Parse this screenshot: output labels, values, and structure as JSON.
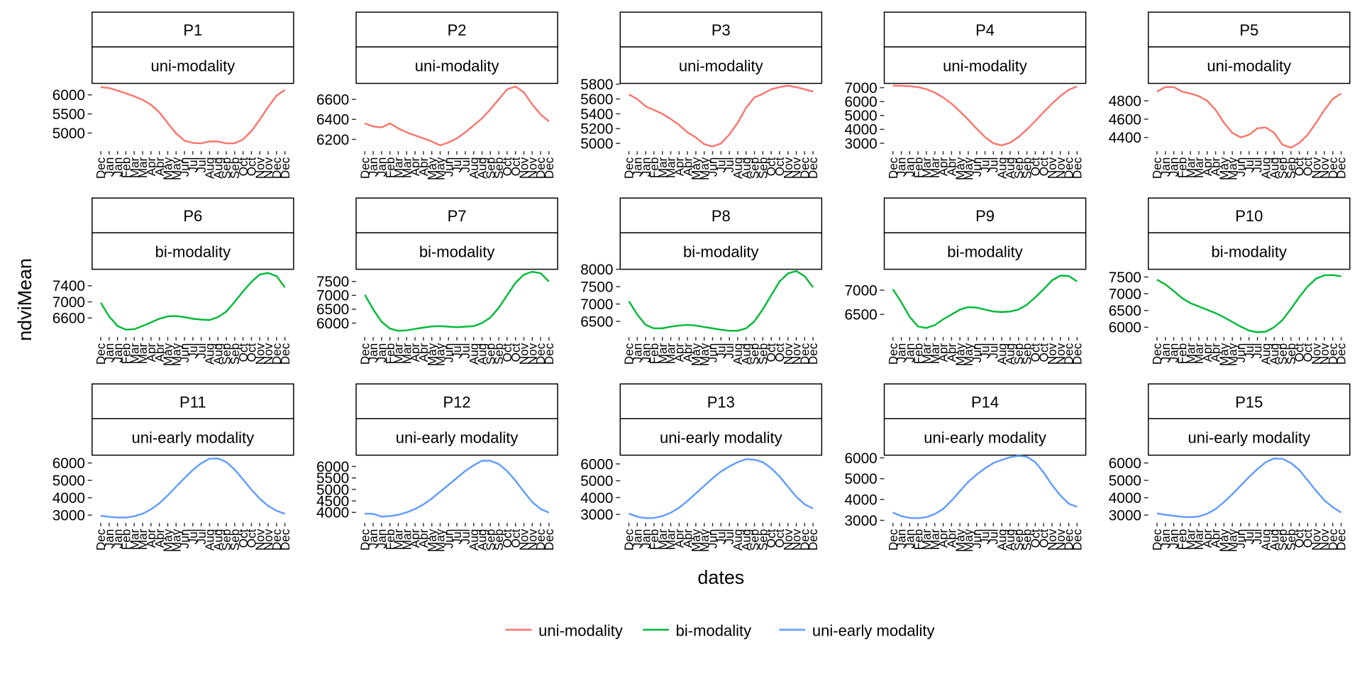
{
  "x_label": "dates",
  "y_label": "ndviMean",
  "legend": [
    {
      "name": "uni-modality",
      "color": "#F8766D"
    },
    {
      "name": "bi-modality",
      "color": "#00BA38"
    },
    {
      "name": "uni-early modality",
      "color": "#619CFF"
    }
  ],
  "chart_data": [
    {
      "type": "line",
      "title": "P1",
      "subtitle": "uni-modality",
      "color": "#F8766D",
      "categories": [
        "Dec",
        "Jan",
        "Jan",
        "Feb",
        "Mar",
        "Mar",
        "Apr",
        "Apr",
        "May",
        "May",
        "Jun",
        "Jul",
        "Jul",
        "Aug",
        "Aug",
        "Sep",
        "Sep",
        "Oct",
        "Oct",
        "Nov",
        "Nov",
        "Dec",
        "Dec"
      ],
      "values": [
        6200,
        6180,
        6110,
        6040,
        5960,
        5870,
        5740,
        5540,
        5260,
        4990,
        4800,
        4740,
        4730,
        4780,
        4780,
        4730,
        4730,
        4830,
        5050,
        5350,
        5680,
        5980,
        6130
      ],
      "ylim": [
        4570,
        6300
      ],
      "yticks": [
        5000,
        5500,
        6000
      ]
    },
    {
      "type": "line",
      "title": "P2",
      "subtitle": "uni-modality",
      "color": "#F8766D",
      "categories": [
        "Dec",
        "Jan",
        "Jan",
        "Feb",
        "Mar",
        "Mar",
        "Apr",
        "Apr",
        "May",
        "May",
        "Jun",
        "Jul",
        "Jul",
        "Aug",
        "Aug",
        "Sep",
        "Sep",
        "Oct",
        "Oct",
        "Nov",
        "Nov",
        "Dec",
        "Dec"
      ],
      "values": [
        6360,
        6330,
        6320,
        6360,
        6310,
        6270,
        6240,
        6210,
        6180,
        6140,
        6170,
        6210,
        6270,
        6340,
        6410,
        6500,
        6600,
        6700,
        6730,
        6670,
        6550,
        6450,
        6380
      ],
      "ylim": [
        6100,
        6760
      ],
      "yticks": [
        6200,
        6400,
        6600
      ]
    },
    {
      "type": "line",
      "title": "P3",
      "subtitle": "uni-modality",
      "color": "#F8766D",
      "categories": [
        "Dec",
        "Jan",
        "Jan",
        "Feb",
        "Mar",
        "Mar",
        "Apr",
        "Apr",
        "May",
        "May",
        "Jun",
        "Jul",
        "Jul",
        "Aug",
        "Aug",
        "Sep",
        "Sep",
        "Oct",
        "Oct",
        "Nov",
        "Nov",
        "Dec",
        "Dec"
      ],
      "values": [
        5660,
        5600,
        5500,
        5450,
        5400,
        5330,
        5250,
        5150,
        5080,
        4990,
        4960,
        5000,
        5120,
        5280,
        5480,
        5620,
        5670,
        5730,
        5760,
        5780,
        5760,
        5730,
        5700
      ],
      "ylim": [
        4920,
        5810
      ],
      "yticks": [
        5000,
        5200,
        5400,
        5600,
        5800
      ]
    },
    {
      "type": "line",
      "title": "P4",
      "subtitle": "uni-modality",
      "color": "#F8766D",
      "categories": [
        "Dec",
        "Jan",
        "Jan",
        "Feb",
        "Mar",
        "Mar",
        "Apr",
        "Apr",
        "May",
        "May",
        "Jun",
        "Jul",
        "Jul",
        "Aug",
        "Aug",
        "Sep",
        "Sep",
        "Oct",
        "Oct",
        "Nov",
        "Nov",
        "Dec",
        "Dec"
      ],
      "values": [
        7150,
        7140,
        7110,
        7040,
        6900,
        6650,
        6300,
        5850,
        5300,
        4700,
        4050,
        3450,
        3000,
        2850,
        3050,
        3450,
        4000,
        4600,
        5250,
        5850,
        6400,
        6850,
        7100
      ],
      "ylim": [
        2560,
        7310
      ],
      "yticks": [
        3000,
        4000,
        5000,
        6000,
        7000
      ]
    },
    {
      "type": "line",
      "title": "P5",
      "subtitle": "uni-modality",
      "color": "#F8766D",
      "categories": [
        "Dec",
        "Jan",
        "Jan",
        "Feb",
        "Mar",
        "Mar",
        "Apr",
        "Apr",
        "May",
        "May",
        "Jun",
        "Jul",
        "Jul",
        "Aug",
        "Aug",
        "Sep",
        "Sep",
        "Oct",
        "Oct",
        "Nov",
        "Nov",
        "Dec",
        "Dec"
      ],
      "values": [
        4900,
        4950,
        4950,
        4900,
        4880,
        4850,
        4800,
        4700,
        4560,
        4450,
        4400,
        4430,
        4500,
        4510,
        4450,
        4320,
        4290,
        4340,
        4430,
        4560,
        4700,
        4820,
        4880
      ],
      "ylim": [
        4270,
        4990
      ],
      "yticks": [
        4400,
        4600,
        4800
      ]
    },
    {
      "type": "line",
      "title": "P6",
      "subtitle": "bi-modality",
      "color": "#00BA38",
      "categories": [
        "Dec",
        "Jan",
        "Jan",
        "Feb",
        "Mar",
        "Mar",
        "Apr",
        "Apr",
        "May",
        "May",
        "Jun",
        "Jul",
        "Jul",
        "Aug",
        "Aug",
        "Sep",
        "Sep",
        "Oct",
        "Oct",
        "Nov",
        "Nov",
        "Dec",
        "Dec"
      ],
      "values": [
        6980,
        6640,
        6400,
        6310,
        6320,
        6400,
        6490,
        6580,
        6640,
        6650,
        6620,
        6580,
        6560,
        6550,
        6620,
        6760,
        7000,
        7260,
        7500,
        7680,
        7720,
        7640,
        7360
      ],
      "ylim": [
        6170,
        7810
      ],
      "yticks": [
        6600,
        7000,
        7400
      ]
    },
    {
      "type": "line",
      "title": "P7",
      "subtitle": "bi-modality",
      "color": "#00BA38",
      "categories": [
        "Dec",
        "Jan",
        "Jan",
        "Feb",
        "Mar",
        "Mar",
        "Apr",
        "Apr",
        "May",
        "May",
        "Jun",
        "Jul",
        "Jul",
        "Aug",
        "Aug",
        "Sep",
        "Sep",
        "Oct",
        "Oct",
        "Nov",
        "Nov",
        "Dec",
        "Dec"
      ],
      "values": [
        7020,
        6500,
        6050,
        5800,
        5720,
        5740,
        5790,
        5840,
        5880,
        5890,
        5870,
        5850,
        5870,
        5890,
        6000,
        6200,
        6550,
        7000,
        7450,
        7750,
        7850,
        7800,
        7500
      ],
      "ylim": [
        5560,
        7940
      ],
      "yticks": [
        6000,
        6500,
        7000,
        7500
      ]
    },
    {
      "type": "line",
      "title": "P8",
      "subtitle": "bi-modality",
      "color": "#00BA38",
      "categories": [
        "Dec",
        "Jan",
        "Jan",
        "Feb",
        "Mar",
        "Mar",
        "Apr",
        "Apr",
        "May",
        "May",
        "Jun",
        "Jul",
        "Jul",
        "Aug",
        "Aug",
        "Sep",
        "Sep",
        "Oct",
        "Oct",
        "Nov",
        "Nov",
        "Dec",
        "Dec"
      ],
      "values": [
        7080,
        6700,
        6400,
        6300,
        6300,
        6350,
        6380,
        6400,
        6380,
        6340,
        6300,
        6260,
        6230,
        6230,
        6300,
        6500,
        6850,
        7250,
        7650,
        7880,
        7950,
        7800,
        7480
      ],
      "ylim": [
        6100,
        8000
      ],
      "yticks": [
        6500,
        7000,
        7500,
        8000
      ]
    },
    {
      "type": "line",
      "title": "P9",
      "subtitle": "bi-modality",
      "color": "#00BA38",
      "categories": [
        "Dec",
        "Jan",
        "Jan",
        "Feb",
        "Mar",
        "Mar",
        "Apr",
        "Apr",
        "May",
        "May",
        "Jun",
        "Jul",
        "Jul",
        "Aug",
        "Aug",
        "Sep",
        "Sep",
        "Oct",
        "Oct",
        "Nov",
        "Nov",
        "Dec",
        "Dec"
      ],
      "values": [
        7020,
        6750,
        6450,
        6250,
        6220,
        6280,
        6400,
        6500,
        6600,
        6650,
        6640,
        6600,
        6560,
        6550,
        6560,
        6600,
        6700,
        6850,
        7020,
        7200,
        7300,
        7290,
        7180
      ],
      "ylim": [
        6070,
        7430
      ],
      "yticks": [
        6500,
        7000
      ]
    },
    {
      "type": "line",
      "title": "P10",
      "subtitle": "bi-modality",
      "color": "#00BA38",
      "categories": [
        "Dec",
        "Jan",
        "Jan",
        "Feb",
        "Mar",
        "Mar",
        "Apr",
        "Apr",
        "May",
        "May",
        "Jun",
        "Jul",
        "Jul",
        "Aug",
        "Aug",
        "Sep",
        "Sep",
        "Oct",
        "Oct",
        "Nov",
        "Nov",
        "Dec",
        "Dec"
      ],
      "values": [
        7420,
        7280,
        7080,
        6870,
        6720,
        6620,
        6520,
        6420,
        6300,
        6160,
        6020,
        5900,
        5850,
        5870,
        6000,
        6220,
        6550,
        6900,
        7220,
        7450,
        7550,
        7560,
        7520
      ],
      "ylim": [
        5760,
        7730
      ],
      "yticks": [
        6000,
        6500,
        7000,
        7500
      ]
    },
    {
      "type": "line",
      "title": "P11",
      "subtitle": "uni-early modality",
      "color": "#619CFF",
      "categories": [
        "Dec",
        "Jan",
        "Jan",
        "Feb",
        "Mar",
        "Mar",
        "Apr",
        "Apr",
        "May",
        "May",
        "Jun",
        "Jul",
        "Jul",
        "Aug",
        "Aug",
        "Sep",
        "Sep",
        "Oct",
        "Oct",
        "Nov",
        "Nov",
        "Dec",
        "Dec"
      ],
      "values": [
        2960,
        2900,
        2860,
        2860,
        2930,
        3080,
        3330,
        3680,
        4130,
        4630,
        5130,
        5600,
        5980,
        6250,
        6260,
        6060,
        5620,
        5050,
        4460,
        3940,
        3530,
        3250,
        3080
      ],
      "ylim": [
        2650,
        6450
      ],
      "yticks": [
        3000,
        4000,
        5000,
        6000
      ]
    },
    {
      "type": "line",
      "title": "P12",
      "subtitle": "uni-early modality",
      "color": "#619CFF",
      "categories": [
        "Dec",
        "Jan",
        "Jan",
        "Feb",
        "Mar",
        "Mar",
        "Apr",
        "Apr",
        "May",
        "May",
        "Jun",
        "Jul",
        "Jul",
        "Aug",
        "Aug",
        "Sep",
        "Sep",
        "Oct",
        "Oct",
        "Nov",
        "Nov",
        "Dec",
        "Dec"
      ],
      "values": [
        3950,
        3940,
        3820,
        3840,
        3900,
        4000,
        4150,
        4350,
        4600,
        4900,
        5200,
        5500,
        5800,
        6050,
        6250,
        6250,
        6100,
        5800,
        5380,
        4900,
        4450,
        4150,
        3990
      ],
      "ylim": [
        3620,
        6490
      ],
      "yticks": [
        4000,
        4500,
        5000,
        5500,
        6000
      ]
    },
    {
      "type": "line",
      "title": "P13",
      "subtitle": "uni-early modality",
      "color": "#619CFF",
      "categories": [
        "Dec",
        "Jan",
        "Jan",
        "Feb",
        "Mar",
        "Mar",
        "Apr",
        "Apr",
        "May",
        "May",
        "Jun",
        "Jul",
        "Jul",
        "Aug",
        "Aug",
        "Sep",
        "Sep",
        "Oct",
        "Oct",
        "Nov",
        "Nov",
        "Dec",
        "Dec"
      ],
      "values": [
        3050,
        2870,
        2780,
        2790,
        2900,
        3100,
        3400,
        3800,
        4250,
        4700,
        5150,
        5550,
        5850,
        6100,
        6280,
        6250,
        6100,
        5750,
        5250,
        4650,
        4050,
        3600,
        3350
      ],
      "ylim": [
        2600,
        6520
      ],
      "yticks": [
        3000,
        4000,
        5000,
        6000
      ]
    },
    {
      "type": "line",
      "title": "P14",
      "subtitle": "uni-early modality",
      "color": "#619CFF",
      "categories": [
        "Dec",
        "Jan",
        "Jan",
        "Feb",
        "Mar",
        "Mar",
        "Apr",
        "Apr",
        "May",
        "May",
        "Jun",
        "Jul",
        "Jul",
        "Aug",
        "Aug",
        "Sep",
        "Sep",
        "Oct",
        "Oct",
        "Nov",
        "Nov",
        "Dec",
        "Dec"
      ],
      "values": [
        3380,
        3200,
        3120,
        3100,
        3150,
        3300,
        3550,
        3950,
        4400,
        4850,
        5200,
        5500,
        5750,
        5900,
        6030,
        6100,
        6050,
        5800,
        5300,
        4700,
        4200,
        3800,
        3650
      ],
      "ylim": [
        2960,
        6130
      ],
      "yticks": [
        3000,
        4000,
        5000,
        6000
      ]
    },
    {
      "type": "line",
      "title": "P15",
      "subtitle": "uni-early modality",
      "color": "#619CFF",
      "categories": [
        "Dec",
        "Jan",
        "Jan",
        "Feb",
        "Mar",
        "Mar",
        "Apr",
        "Apr",
        "May",
        "May",
        "Jun",
        "Jul",
        "Jul",
        "Aug",
        "Aug",
        "Sep",
        "Sep",
        "Oct",
        "Oct",
        "Nov",
        "Nov",
        "Dec",
        "Dec"
      ],
      "values": [
        3100,
        3020,
        2960,
        2900,
        2880,
        2920,
        3080,
        3350,
        3750,
        4200,
        4700,
        5200,
        5650,
        6050,
        6260,
        6240,
        6000,
        5600,
        5000,
        4400,
        3850,
        3450,
        3150
      ],
      "ylim": [
        2650,
        6450
      ],
      "yticks": [
        3000,
        4000,
        5000,
        6000
      ]
    }
  ]
}
